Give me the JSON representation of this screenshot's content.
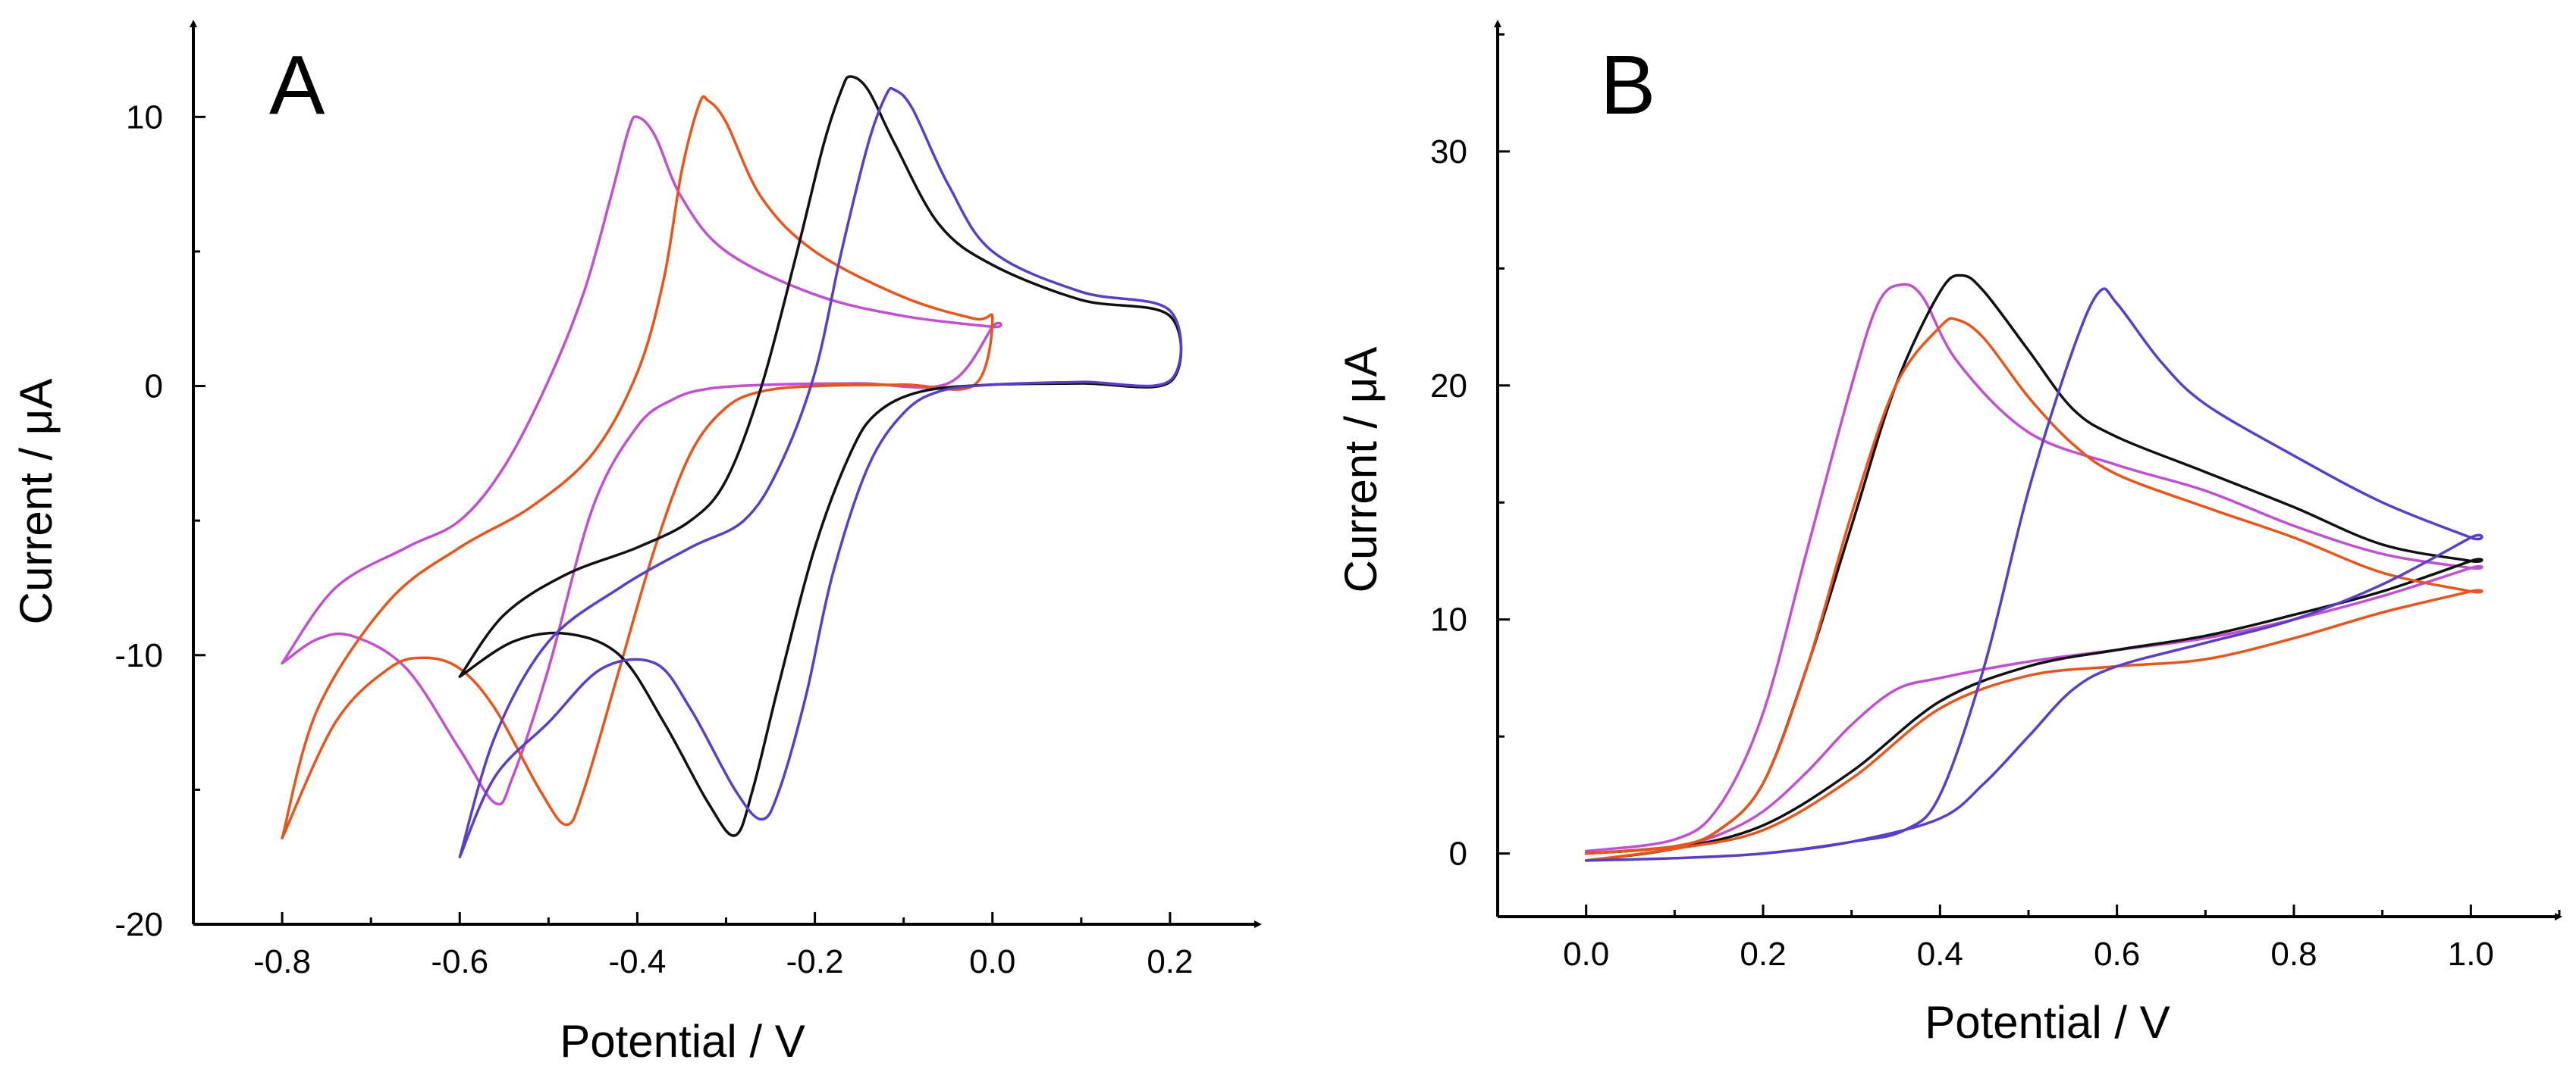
{
  "chart_data": [
    {
      "type": "line",
      "panel_label": "A",
      "xlabel": "Potential / V",
      "ylabel": "Current / μA",
      "xlim": [
        -0.9,
        0.3
      ],
      "ylim": [
        -20,
        13.5
      ],
      "xticks": [
        -0.8,
        -0.6,
        -0.4,
        -0.2,
        0.0,
        0.2
      ],
      "xtick_labels": [
        "-0.8",
        "-0.6",
        "-0.4",
        "-0.2",
        "0.0",
        "0.2"
      ],
      "yticks": [
        -20,
        -10,
        0,
        10
      ],
      "ytick_labels": [
        "-20",
        "-10",
        "0",
        "10"
      ],
      "grid": false,
      "series": [
        {
          "color": "#c050d0",
          "points": [
            [
              -0.8,
              -10.3
            ],
            [
              -0.74,
              -7.5
            ],
            [
              -0.66,
              -6.0
            ],
            [
              -0.6,
              -5.0
            ],
            [
              -0.55,
              -3.0
            ],
            [
              -0.5,
              0.2
            ],
            [
              -0.46,
              3.5
            ],
            [
              -0.43,
              7.0
            ],
            [
              -0.41,
              9.5
            ],
            [
              -0.4,
              10.0
            ],
            [
              -0.38,
              9.3
            ],
            [
              -0.35,
              7.0
            ],
            [
              -0.3,
              5.0
            ],
            [
              -0.2,
              3.4
            ],
            [
              -0.1,
              2.6
            ],
            [
              0.0,
              2.2
            ],
            [
              0.0,
              2.2
            ],
            [
              -0.05,
              0.1
            ],
            [
              -0.15,
              0.1
            ],
            [
              -0.25,
              0.05
            ],
            [
              -0.32,
              -0.1
            ],
            [
              -0.36,
              -0.5
            ],
            [
              -0.4,
              -1.5
            ],
            [
              -0.45,
              -4.5
            ],
            [
              -0.5,
              -10.5
            ],
            [
              -0.54,
              -14.5
            ],
            [
              -0.56,
              -15.5
            ],
            [
              -0.6,
              -13.5
            ],
            [
              -0.66,
              -10.5
            ],
            [
              -0.72,
              -9.3
            ],
            [
              -0.76,
              -9.4
            ],
            [
              -0.8,
              -10.3
            ]
          ]
        },
        {
          "color": "#e8541a",
          "points": [
            [
              -0.8,
              -16.8
            ],
            [
              -0.76,
              -12.0
            ],
            [
              -0.68,
              -8.0
            ],
            [
              -0.6,
              -6.0
            ],
            [
              -0.52,
              -4.5
            ],
            [
              -0.45,
              -2.5
            ],
            [
              -0.4,
              0.5
            ],
            [
              -0.37,
              4.0
            ],
            [
              -0.35,
              8.0
            ],
            [
              -0.33,
              10.5
            ],
            [
              -0.32,
              10.6
            ],
            [
              -0.3,
              9.8
            ],
            [
              -0.26,
              7.0
            ],
            [
              -0.2,
              5.0
            ],
            [
              -0.1,
              3.3
            ],
            [
              -0.02,
              2.5
            ],
            [
              0.0,
              2.5
            ],
            [
              -0.02,
              0.05
            ],
            [
              -0.1,
              0.05
            ],
            [
              -0.2,
              0.0
            ],
            [
              -0.26,
              -0.2
            ],
            [
              -0.3,
              -0.8
            ],
            [
              -0.34,
              -2.5
            ],
            [
              -0.38,
              -6.0
            ],
            [
              -0.42,
              -10.5
            ],
            [
              -0.46,
              -15.0
            ],
            [
              -0.48,
              -16.3
            ],
            [
              -0.51,
              -15.0
            ],
            [
              -0.56,
              -12.0
            ],
            [
              -0.6,
              -10.5
            ],
            [
              -0.64,
              -10.1
            ],
            [
              -0.68,
              -10.5
            ],
            [
              -0.74,
              -12.5
            ],
            [
              -0.8,
              -16.8
            ]
          ]
        },
        {
          "color": "#111111",
          "points": [
            [
              -0.6,
              -10.8
            ],
            [
              -0.55,
              -8.5
            ],
            [
              -0.48,
              -7.0
            ],
            [
              -0.4,
              -6.0
            ],
            [
              -0.34,
              -5.0
            ],
            [
              -0.3,
              -3.5
            ],
            [
              -0.26,
              0.0
            ],
            [
              -0.22,
              5.0
            ],
            [
              -0.19,
              9.0
            ],
            [
              -0.17,
              11.0
            ],
            [
              -0.16,
              11.5
            ],
            [
              -0.14,
              11.0
            ],
            [
              -0.11,
              9.0
            ],
            [
              -0.06,
              6.0
            ],
            [
              0.0,
              4.5
            ],
            [
              0.1,
              3.2
            ],
            [
              0.2,
              2.6
            ],
            [
              0.2,
              0.15
            ],
            [
              0.1,
              0.1
            ],
            [
              0.0,
              0.05
            ],
            [
              -0.08,
              -0.2
            ],
            [
              -0.13,
              -1.0
            ],
            [
              -0.16,
              -2.5
            ],
            [
              -0.2,
              -6.0
            ],
            [
              -0.24,
              -11.0
            ],
            [
              -0.27,
              -15.0
            ],
            [
              -0.29,
              -16.7
            ],
            [
              -0.32,
              -15.5
            ],
            [
              -0.37,
              -12.5
            ],
            [
              -0.42,
              -10.0
            ],
            [
              -0.48,
              -9.2
            ],
            [
              -0.54,
              -9.5
            ],
            [
              -0.6,
              -10.8
            ]
          ]
        },
        {
          "color": "#5a3ec8",
          "points": [
            [
              -0.6,
              -17.5
            ],
            [
              -0.56,
              -13.0
            ],
            [
              -0.5,
              -9.5
            ],
            [
              -0.42,
              -7.5
            ],
            [
              -0.34,
              -6.0
            ],
            [
              -0.28,
              -5.0
            ],
            [
              -0.24,
              -3.0
            ],
            [
              -0.2,
              0.5
            ],
            [
              -0.17,
              5.0
            ],
            [
              -0.14,
              9.0
            ],
            [
              -0.12,
              10.8
            ],
            [
              -0.11,
              11.0
            ],
            [
              -0.09,
              10.3
            ],
            [
              -0.05,
              7.5
            ],
            [
              0.0,
              5.0
            ],
            [
              0.1,
              3.5
            ],
            [
              0.2,
              2.8
            ],
            [
              0.2,
              0.2
            ],
            [
              0.1,
              0.15
            ],
            [
              0.0,
              0.05
            ],
            [
              -0.06,
              -0.2
            ],
            [
              -0.1,
              -1.0
            ],
            [
              -0.14,
              -3.0
            ],
            [
              -0.18,
              -7.0
            ],
            [
              -0.21,
              -11.5
            ],
            [
              -0.24,
              -15.0
            ],
            [
              -0.26,
              -16.1
            ],
            [
              -0.29,
              -15.0
            ],
            [
              -0.34,
              -12.0
            ],
            [
              -0.38,
              -10.3
            ],
            [
              -0.44,
              -10.5
            ],
            [
              -0.5,
              -12.5
            ],
            [
              -0.56,
              -14.5
            ],
            [
              -0.6,
              -17.5
            ]
          ]
        }
      ]
    },
    {
      "type": "line",
      "panel_label": "B",
      "xlabel": "Potential / V",
      "ylabel": "Current / μA",
      "xlim": [
        -0.1,
        1.1
      ],
      "ylim": [
        -2.7,
        35.5
      ],
      "xticks": [
        0.0,
        0.2,
        0.4,
        0.6,
        0.8,
        1.0
      ],
      "xtick_labels": [
        "0.0",
        "0.2",
        "0.4",
        "0.6",
        "0.8",
        "1.0"
      ],
      "yticks": [
        0,
        10,
        20,
        30
      ],
      "ytick_labels": [
        "0",
        "10",
        "20",
        "30"
      ],
      "grid": false,
      "series": [
        {
          "color": "#c050d0",
          "points": [
            [
              0.0,
              0.1
            ],
            [
              0.1,
              0.6
            ],
            [
              0.15,
              2.0
            ],
            [
              0.2,
              6.0
            ],
            [
              0.25,
              13.0
            ],
            [
              0.3,
              20.0
            ],
            [
              0.33,
              23.5
            ],
            [
              0.355,
              24.3
            ],
            [
              0.38,
              23.8
            ],
            [
              0.42,
              21.0
            ],
            [
              0.5,
              18.0
            ],
            [
              0.6,
              16.6
            ],
            [
              0.7,
              15.5
            ],
            [
              0.8,
              14.0
            ],
            [
              0.9,
              12.8
            ],
            [
              1.0,
              12.2
            ],
            [
              1.0,
              12.2
            ],
            [
              0.9,
              11.0
            ],
            [
              0.8,
              10.0
            ],
            [
              0.7,
              9.2
            ],
            [
              0.6,
              8.7
            ],
            [
              0.5,
              8.2
            ],
            [
              0.4,
              7.5
            ],
            [
              0.35,
              7.0
            ],
            [
              0.3,
              5.5
            ],
            [
              0.25,
              3.5
            ],
            [
              0.2,
              1.8
            ],
            [
              0.15,
              0.8
            ],
            [
              0.1,
              0.3
            ],
            [
              0.0,
              0.0
            ]
          ]
        },
        {
          "color": "#111111",
          "points": [
            [
              0.0,
              0.0
            ],
            [
              0.1,
              0.3
            ],
            [
              0.15,
              1.0
            ],
            [
              0.2,
              3.0
            ],
            [
              0.25,
              8.0
            ],
            [
              0.3,
              14.0
            ],
            [
              0.35,
              20.0
            ],
            [
              0.4,
              24.0
            ],
            [
              0.425,
              24.7
            ],
            [
              0.45,
              24.0
            ],
            [
              0.5,
              21.5
            ],
            [
              0.55,
              19.0
            ],
            [
              0.6,
              17.8
            ],
            [
              0.7,
              16.3
            ],
            [
              0.8,
              14.8
            ],
            [
              0.9,
              13.2
            ],
            [
              1.0,
              12.5
            ],
            [
              1.0,
              12.5
            ],
            [
              0.9,
              11.2
            ],
            [
              0.8,
              10.2
            ],
            [
              0.7,
              9.3
            ],
            [
              0.6,
              8.7
            ],
            [
              0.5,
              8.0
            ],
            [
              0.4,
              6.5
            ],
            [
              0.3,
              3.5
            ],
            [
              0.2,
              1.2
            ],
            [
              0.1,
              0.2
            ],
            [
              0.0,
              -0.3
            ]
          ]
        },
        {
          "color": "#e8541a",
          "points": [
            [
              0.0,
              0.0
            ],
            [
              0.1,
              0.3
            ],
            [
              0.15,
              1.0
            ],
            [
              0.2,
              3.0
            ],
            [
              0.25,
              8.0
            ],
            [
              0.3,
              14.5
            ],
            [
              0.35,
              20.0
            ],
            [
              0.4,
              22.5
            ],
            [
              0.42,
              22.8
            ],
            [
              0.45,
              22.0
            ],
            [
              0.5,
              19.5
            ],
            [
              0.55,
              17.5
            ],
            [
              0.6,
              16.2
            ],
            [
              0.7,
              14.8
            ],
            [
              0.8,
              13.5
            ],
            [
              0.9,
              12.0
            ],
            [
              1.0,
              11.2
            ],
            [
              1.0,
              11.2
            ],
            [
              0.9,
              10.3
            ],
            [
              0.8,
              9.2
            ],
            [
              0.7,
              8.3
            ],
            [
              0.6,
              8.0
            ],
            [
              0.5,
              7.6
            ],
            [
              0.4,
              6.2
            ],
            [
              0.3,
              3.2
            ],
            [
              0.2,
              1.0
            ],
            [
              0.1,
              0.2
            ],
            [
              0.0,
              -0.3
            ]
          ]
        },
        {
          "color": "#5a3ec8",
          "points": [
            [
              0.0,
              -0.3
            ],
            [
              0.1,
              -0.2
            ],
            [
              0.2,
              0.0
            ],
            [
              0.3,
              0.5
            ],
            [
              0.36,
              1.0
            ],
            [
              0.4,
              2.5
            ],
            [
              0.45,
              8.0
            ],
            [
              0.5,
              15.5
            ],
            [
              0.55,
              21.5
            ],
            [
              0.58,
              24.0
            ],
            [
              0.6,
              23.5
            ],
            [
              0.65,
              21.0
            ],
            [
              0.7,
              19.2
            ],
            [
              0.8,
              17.0
            ],
            [
              0.9,
              15.0
            ],
            [
              1.0,
              13.5
            ],
            [
              1.0,
              13.5
            ],
            [
              0.9,
              11.5
            ],
            [
              0.8,
              10.0
            ],
            [
              0.7,
              9.0
            ],
            [
              0.6,
              8.0
            ],
            [
              0.55,
              7.0
            ],
            [
              0.5,
              5.0
            ],
            [
              0.45,
              3.0
            ],
            [
              0.4,
              1.5
            ],
            [
              0.3,
              0.5
            ],
            [
              0.2,
              0.0
            ],
            [
              0.1,
              -0.2
            ],
            [
              0.0,
              -0.3
            ]
          ]
        }
      ]
    }
  ]
}
